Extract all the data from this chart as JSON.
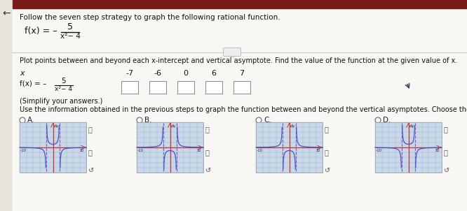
{
  "title": "Follow the seven step strategy to graph the following rational function.",
  "instruction1": "Plot points between and beyond each x-intercept and vertical asymptote. Find the value of the function at the given value of x.",
  "x_values": [
    "-7",
    "-6",
    "0",
    "6",
    "7"
  ],
  "simplify_note": "(Simplify your answers.)",
  "instruction2": "Use the information obtained in the previous steps to graph the function between and beyond the vertical asymptotes. Choose the correct graph below.",
  "bg_outer": "#d8d0c8",
  "bg_white": "#f8f7f4",
  "top_bar_color": "#7a1a1a",
  "left_bar_color": "#2a2a6a",
  "sep_line_color": "#cccccc",
  "dot_btn_color": "#e0e0e0",
  "text_color": "#111111",
  "frac_bar_color": "#111111",
  "box_edge_color": "#888888",
  "graph_bg": "#c8d8e8",
  "graph_grid_color": "#9ab0c8",
  "graph_axis_color": "#cc3333",
  "graph_asymptote_color": "#9955bb",
  "graph_curve_color": "#4455cc",
  "graph_label_color": "#333355",
  "radio_edge": "#666666",
  "option_text_color": "#222222",
  "cursor_color": "#444466"
}
